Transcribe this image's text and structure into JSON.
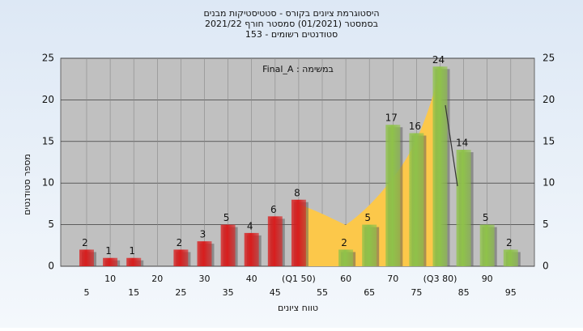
{
  "chart_data": {
    "type": "bar",
    "title": [
      "היסטוגרמת ציונים בקורס - סטטיסטיקות מבנים",
      "בסמסטר  (01/2021)  סמסטר חורף 2021/22",
      "153 - סטודנטים רשומים"
    ],
    "annotation": "Final_A : במשימה",
    "x_label": "טווח ציונים",
    "y_label": "מספר סטודנטים",
    "categories": [
      "5",
      "10",
      "15",
      "20",
      "25",
      "30",
      "35",
      "40",
      "45",
      "(Q1 50)",
      "55",
      "60",
      "65",
      "70",
      "75",
      "(Q3 80)",
      "85",
      "90",
      "95"
    ],
    "values": [
      2,
      1,
      1,
      0,
      2,
      3,
      5,
      4,
      6,
      8,
      0,
      2,
      5,
      17,
      16,
      24,
      14,
      5,
      2
    ],
    "colors": [
      "#d81e1e",
      "#d81e1e",
      "#d81e1e",
      "#d81e1e",
      "#d81e1e",
      "#d81e1e",
      "#d81e1e",
      "#d81e1e",
      "#d81e1e",
      "#d81e1e",
      "#8fc24a",
      "#8fc24a",
      "#8fc24a",
      "#8fc24a",
      "#8fc24a",
      "#8fc24a",
      "#8fc24a",
      "#8fc24a",
      "#8fc24a"
    ],
    "ylim": [
      0,
      25
    ],
    "yticks": [
      0,
      5,
      10,
      15,
      20,
      25
    ],
    "grid": true
  }
}
